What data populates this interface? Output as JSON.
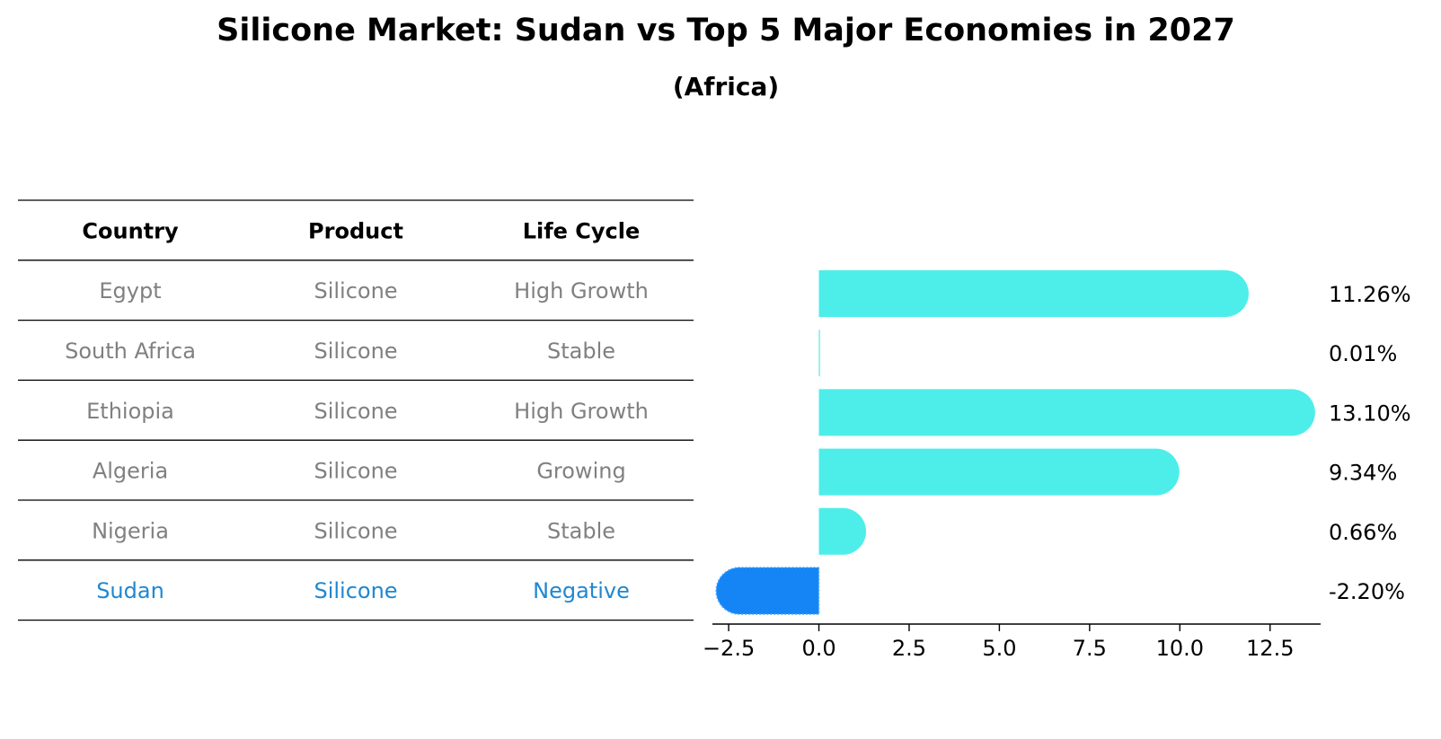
{
  "title": "Silicone Market: Sudan vs Top 5 Major Economies in 2027",
  "subtitle": "(Africa)",
  "colors": {
    "normal_text": "#808080",
    "highlight_text": "#1f87d0",
    "bar_normal": "#4deeea",
    "bar_highlight": "#1585f5",
    "line": "#000000"
  },
  "table": {
    "headers": [
      "Country",
      "Product",
      "Life Cycle"
    ],
    "rows": [
      {
        "country": "Egypt",
        "product": "Silicone",
        "life_cycle": "High Growth",
        "highlight": false
      },
      {
        "country": "South Africa",
        "product": "Silicone",
        "life_cycle": "Stable",
        "highlight": false
      },
      {
        "country": "Ethiopia",
        "product": "Silicone",
        "life_cycle": "High Growth",
        "highlight": false
      },
      {
        "country": "Algeria",
        "product": "Silicone",
        "life_cycle": "Growing",
        "highlight": false
      },
      {
        "country": "Nigeria",
        "product": "Silicone",
        "life_cycle": "Stable",
        "highlight": false
      },
      {
        "country": "Sudan",
        "product": "Silicone",
        "life_cycle": "Negative",
        "highlight": true
      }
    ]
  },
  "chart_data": {
    "type": "bar",
    "orientation": "horizontal",
    "categories": [
      "Egypt",
      "South Africa",
      "Ethiopia",
      "Algeria",
      "Nigeria",
      "Sudan"
    ],
    "values": [
      11.26,
      0.01,
      13.1,
      9.34,
      0.66,
      -2.2
    ],
    "value_labels": [
      "11.26%",
      "0.01%",
      "13.10%",
      "9.34%",
      "0.66%",
      "-2.20%"
    ],
    "highlight": "Sudan",
    "xlim": [
      -2.95,
      13.9
    ],
    "xticks": [
      -2.5,
      0.0,
      2.5,
      5.0,
      7.5,
      10.0,
      12.5
    ],
    "xtick_labels": [
      "−2.5",
      "0.0",
      "2.5",
      "5.0",
      "7.5",
      "10.0",
      "12.5"
    ],
    "title": "Silicone Market: Sudan vs Top 5 Major Economies in 2027",
    "subtitle": "(Africa)",
    "xlabel": "",
    "ylabel": ""
  }
}
